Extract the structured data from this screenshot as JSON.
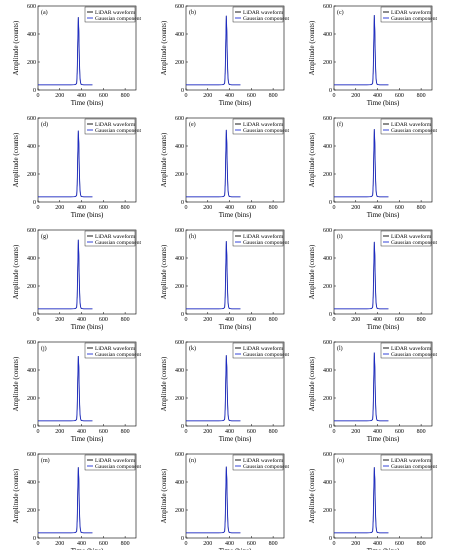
{
  "chart_data": {
    "type": "line",
    "xlabel": "Time (bins)",
    "ylabel": "Amplitude (counts)",
    "xlim": [
      0,
      900
    ],
    "ylim": [
      0,
      600
    ],
    "xticks": [
      0,
      200,
      400,
      600,
      800
    ],
    "yticks": [
      0,
      200,
      400,
      600
    ],
    "xtick_labels": [
      "0",
      "200",
      "400",
      "600",
      "800"
    ],
    "ytick_labels": [
      "0",
      "200",
      "400",
      "600"
    ],
    "legend_position": "top-right",
    "series_styles": [
      {
        "name": "LiDAR waveform",
        "color": "#000000"
      },
      {
        "name": "Gaussian component",
        "color": "#1f2fd6"
      }
    ],
    "panels": [
      {
        "label": "(a)",
        "peak": 520
      },
      {
        "label": "(b)",
        "peak": 530
      },
      {
        "label": "(c)",
        "peak": 535
      },
      {
        "label": "(d)",
        "peak": 510
      },
      {
        "label": "(e)",
        "peak": 515
      },
      {
        "label": "(f)",
        "peak": 520
      },
      {
        "label": "(g)",
        "peak": 530
      },
      {
        "label": "(h)",
        "peak": 520
      },
      {
        "label": "(i)",
        "peak": 515
      },
      {
        "label": "(j)",
        "peak": 500
      },
      {
        "label": "(k)",
        "peak": 505
      },
      {
        "label": "(l)",
        "peak": 525
      },
      {
        "label": "(m)",
        "peak": 505
      },
      {
        "label": "(n)",
        "peak": 510
      },
      {
        "label": "(o)",
        "peak": 505
      }
    ],
    "waveform": {
      "x": [
        0,
        100,
        200,
        300,
        330,
        345,
        355,
        360,
        365,
        370,
        375,
        380,
        385,
        390,
        395,
        400,
        410,
        420,
        440,
        460,
        480,
        500
      ],
      "y_rel": [
        0.062,
        0.062,
        0.062,
        0.062,
        0.063,
        0.065,
        0.08,
        0.2,
        0.55,
        1.0,
        0.7,
        0.35,
        0.16,
        0.09,
        0.07,
        0.064,
        0.063,
        0.062,
        0.062,
        0.062,
        0.062,
        0.062
      ]
    }
  }
}
